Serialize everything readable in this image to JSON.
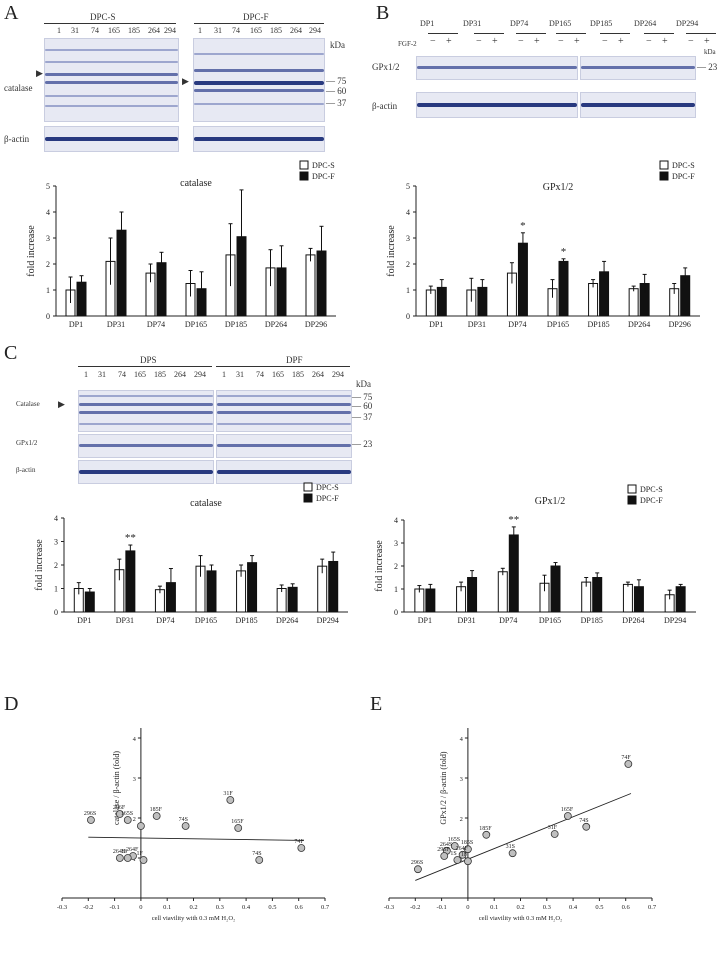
{
  "panels": {
    "A": {
      "letter": "A",
      "groups": [
        "DPC-S",
        "DPC-F"
      ],
      "lanes": [
        "1",
        "31",
        "74",
        "165",
        "185",
        "264",
        "294"
      ],
      "kda": "kDa",
      "markers": [
        "75",
        "60",
        "37"
      ],
      "row_labels": [
        "catalase",
        "β-actin"
      ]
    },
    "B": {
      "letter": "B",
      "lanes": [
        "DP1",
        "DP31",
        "DP74",
        "DP165",
        "DP185",
        "DP264",
        "DP294"
      ],
      "treatment_label": "FGF-2",
      "treatment_signs": [
        "−",
        "+"
      ],
      "kda": "kDa",
      "marker": "23",
      "row_labels": [
        "GPx1/2",
        "β-actin"
      ]
    },
    "C": {
      "letter": "C",
      "groups": [
        "DPS",
        "DPF"
      ],
      "lanes": [
        "1",
        "31",
        "74",
        "165",
        "185",
        "264",
        "294"
      ],
      "kda": "kDa",
      "markers": [
        "75",
        "60",
        "37"
      ],
      "marker_gpx": "23",
      "row_labels": [
        "Catalase",
        "GPx1/2",
        "β-actin"
      ]
    },
    "D": {
      "letter": "D"
    },
    "E": {
      "letter": "E"
    }
  },
  "chart_data": [
    {
      "id": "A-bar",
      "type": "bar",
      "title": "catalase",
      "ylabel": "fold increase",
      "ylim": [
        0,
        5
      ],
      "yticks": [
        "0",
        "1",
        "2",
        "3",
        "4",
        "5"
      ],
      "categories": [
        "DP1",
        "DP31",
        "DP74",
        "DP165",
        "DP185",
        "DP264",
        "DP296"
      ],
      "series": [
        {
          "name": "DPC-S",
          "values": [
            1.0,
            2.1,
            1.65,
            1.25,
            2.35,
            1.85,
            2.35
          ],
          "errors": [
            0.5,
            0.9,
            0.35,
            0.5,
            1.2,
            0.7,
            0.25
          ]
        },
        {
          "name": "DPC-F",
          "values": [
            1.3,
            3.3,
            2.05,
            1.05,
            3.05,
            1.85,
            2.5
          ],
          "errors": [
            0.25,
            0.7,
            0.4,
            0.65,
            1.8,
            0.85,
            0.95
          ]
        }
      ],
      "annotations": []
    },
    {
      "id": "B-bar",
      "type": "bar",
      "title": "GPx1/2",
      "ylabel": "fold increase",
      "ylim": [
        0,
        5
      ],
      "yticks": [
        "0",
        "1",
        "2",
        "3",
        "4",
        "5"
      ],
      "categories": [
        "DP1",
        "DP31",
        "DP74",
        "DP165",
        "DP185",
        "DP264",
        "DP296"
      ],
      "series": [
        {
          "name": "DPC-S",
          "values": [
            1.0,
            1.0,
            1.65,
            1.05,
            1.25,
            1.05,
            1.05
          ],
          "errors": [
            0.15,
            0.45,
            0.4,
            0.35,
            0.15,
            0.1,
            0.2
          ]
        },
        {
          "name": "DPC-F",
          "values": [
            1.1,
            1.1,
            2.8,
            2.1,
            1.7,
            1.25,
            1.55
          ],
          "errors": [
            0.3,
            0.3,
            0.4,
            0.1,
            0.4,
            0.35,
            0.3
          ]
        }
      ],
      "annotations": [
        {
          "index": 2,
          "text": "*"
        },
        {
          "index": 3,
          "text": "*"
        }
      ]
    },
    {
      "id": "C-cat",
      "type": "bar",
      "title": "catalase",
      "ylabel": "fold increase",
      "ylim": [
        0,
        4
      ],
      "yticks": [
        "0",
        "1",
        "2",
        "3",
        "4"
      ],
      "categories": [
        "DP1",
        "DP31",
        "DP74",
        "DP165",
        "DP185",
        "DP264",
        "DP294"
      ],
      "series": [
        {
          "name": "DPC-S",
          "values": [
            1.0,
            1.8,
            0.95,
            1.95,
            1.75,
            1.0,
            1.95
          ],
          "errors": [
            0.25,
            0.45,
            0.15,
            0.45,
            0.25,
            0.15,
            0.3
          ]
        },
        {
          "name": "DPC-F",
          "values": [
            0.85,
            2.6,
            1.25,
            1.75,
            2.1,
            1.05,
            2.15
          ],
          "errors": [
            0.15,
            0.25,
            0.6,
            0.25,
            0.3,
            0.15,
            0.4
          ]
        }
      ],
      "annotations": [
        {
          "index": 1,
          "text": "**"
        }
      ]
    },
    {
      "id": "C-gpx",
      "type": "bar",
      "title": "GPx1/2",
      "ylabel": "fold increase",
      "ylim": [
        0,
        4
      ],
      "yticks": [
        "0",
        "1",
        "2",
        "3",
        "4"
      ],
      "categories": [
        "DP1",
        "DP31",
        "DP74",
        "DP165",
        "DP185",
        "DP264",
        "DP294"
      ],
      "series": [
        {
          "name": "DPC-S",
          "values": [
            1.0,
            1.1,
            1.75,
            1.25,
            1.3,
            1.2,
            0.75
          ],
          "errors": [
            0.15,
            0.2,
            0.15,
            0.35,
            0.2,
            0.1,
            0.2
          ]
        },
        {
          "name": "DPC-F",
          "values": [
            1.0,
            1.5,
            3.35,
            2.0,
            1.5,
            1.1,
            1.1
          ],
          "errors": [
            0.2,
            0.3,
            0.35,
            0.15,
            0.2,
            0.3,
            0.1
          ]
        }
      ],
      "annotations": [
        {
          "index": 2,
          "text": "**"
        }
      ]
    },
    {
      "id": "D-scatter",
      "type": "scatter",
      "ylabel": "catalase / β-actin (fold)",
      "xlabel": "cell viavility with 0.3 mM H₂O₂",
      "xlim": [
        -0.3,
        0.7
      ],
      "ylim": [
        0,
        4
      ],
      "xticks": [
        "-0.3",
        "-0.2",
        "-0.1",
        "0",
        "0.1",
        "0.2",
        "0.3",
        "0.4",
        "0.5",
        "0.6",
        "0.7"
      ],
      "yticks": [
        "1",
        "2",
        "3",
        "4"
      ],
      "points": [
        {
          "label": "296S",
          "x": -0.19,
          "y": 1.95
        },
        {
          "label": "296F",
          "x": -0.08,
          "y": 2.1
        },
        {
          "label": "165S",
          "x": -0.05,
          "y": 1.95
        },
        {
          "label": "185F",
          "x": 0.06,
          "y": 2.05
        },
        {
          "label": "31F",
          "x": 0.34,
          "y": 2.45
        },
        {
          "label": "74S",
          "x": 0.17,
          "y": 1.8
        },
        {
          "label": "165F",
          "x": 0.37,
          "y": 1.75
        },
        {
          "label": "74F",
          "x": 0.61,
          "y": 1.25
        },
        {
          "label": "74S",
          "x": 0.45,
          "y": 0.95
        },
        {
          "label": "264F",
          "x": -0.03,
          "y": 1.05
        },
        {
          "label": "264S",
          "x": -0.08,
          "y": 1.0
        },
        {
          "label": "1S",
          "x": -0.05,
          "y": 1.0
        },
        {
          "label": "1F",
          "x": 0.01,
          "y": 0.95
        },
        {
          "label": "",
          "x": 0.0,
          "y": 1.8
        }
      ],
      "fit": {
        "y0": 1.5,
        "slope": -0.1
      }
    },
    {
      "id": "E-scatter",
      "type": "scatter",
      "ylabel": "GPx1/2 / β-actin (fold)",
      "xlabel": "cell viavility with 0.3 mM H₂O₂",
      "xlim": [
        -0.3,
        0.7
      ],
      "ylim": [
        0,
        4
      ],
      "xticks": [
        "-0.3",
        "-0.2",
        "-0.1",
        "0",
        "0.1",
        "0.2",
        "0.3",
        "0.4",
        "0.5",
        "0.6",
        "0.7"
      ],
      "yticks": [
        "1",
        "2",
        "3",
        "4"
      ],
      "points": [
        {
          "label": "74F",
          "x": 0.61,
          "y": 3.35
        },
        {
          "label": "165F",
          "x": 0.38,
          "y": 2.05
        },
        {
          "label": "74S",
          "x": 0.45,
          "y": 1.78
        },
        {
          "label": "31F",
          "x": 0.33,
          "y": 1.6
        },
        {
          "label": "185F",
          "x": 0.07,
          "y": 1.58
        },
        {
          "label": "31S",
          "x": 0.17,
          "y": 1.12
        },
        {
          "label": "165S",
          "x": -0.05,
          "y": 1.3
        },
        {
          "label": "185S",
          "x": 0.0,
          "y": 1.22
        },
        {
          "label": "264S",
          "x": -0.08,
          "y": 1.18
        },
        {
          "label": "296F",
          "x": -0.09,
          "y": 1.05
        },
        {
          "label": "264F",
          "x": -0.02,
          "y": 1.08
        },
        {
          "label": "1S",
          "x": -0.04,
          "y": 0.95
        },
        {
          "label": "1F",
          "x": 0.0,
          "y": 0.92
        },
        {
          "label": "296S",
          "x": -0.19,
          "y": 0.72
        }
      ],
      "fit": {
        "y0": 0.97,
        "slope": 2.65
      }
    }
  ]
}
